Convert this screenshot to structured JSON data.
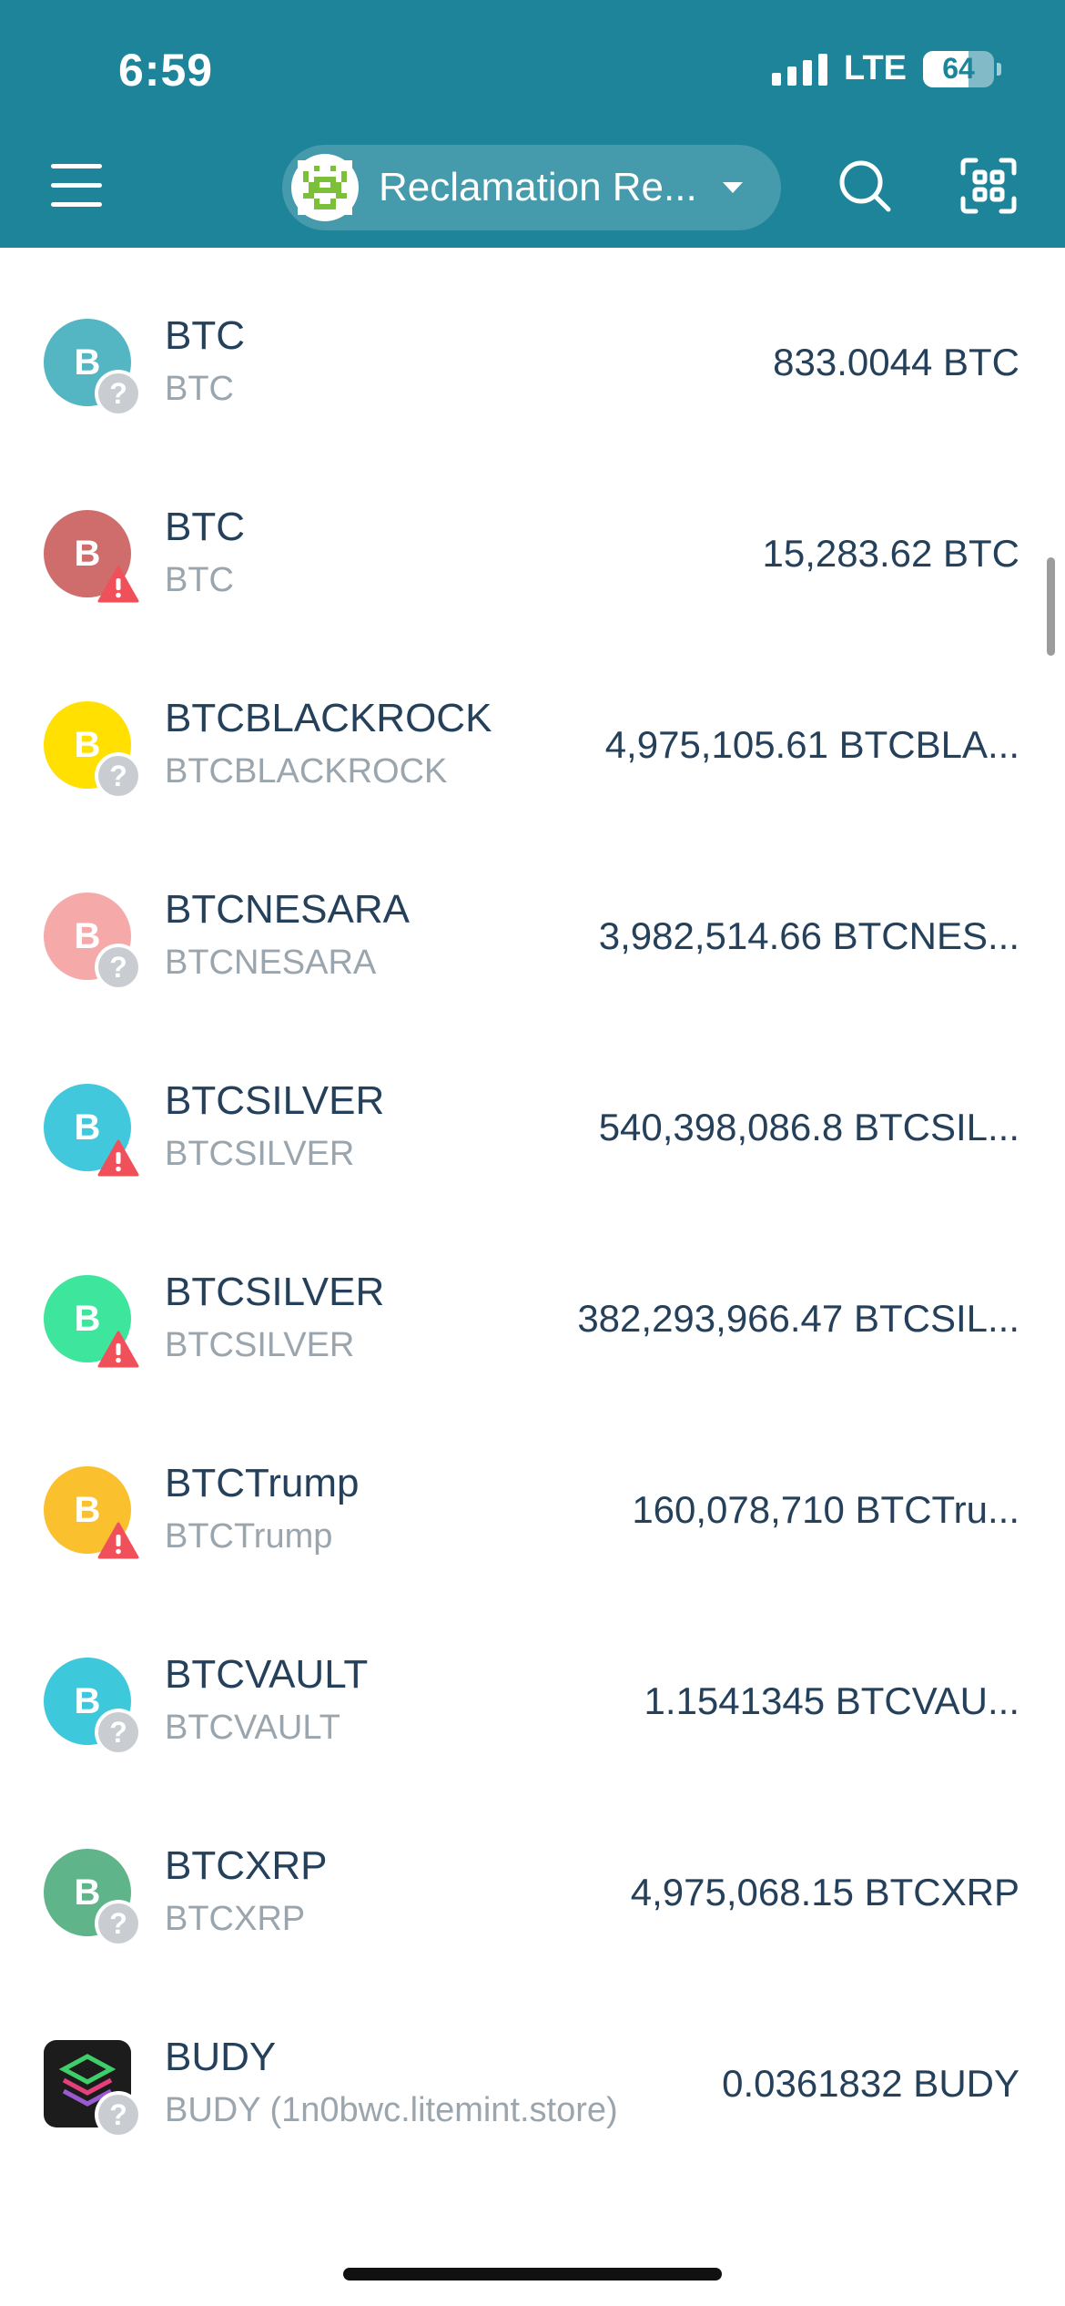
{
  "status_bar": {
    "time": "6:59",
    "network": "LTE",
    "battery_level": "64",
    "battery_fraction": 0.64
  },
  "header": {
    "menu_icon": "hamburger-menu-icon",
    "account_name": "Reclamation Re...",
    "account_avatar": "identicon-avatar",
    "search_icon": "search-icon",
    "scan_icon": "qr-scan-icon",
    "background_color": "#1d8499"
  },
  "tokens": [
    {
      "name": "BTC",
      "symbol": "BTC",
      "balance": "833.0044 BTC",
      "icon_letter": "B",
      "icon_color": "#53b6c2",
      "badge": "question"
    },
    {
      "name": "BTC",
      "symbol": "BTC",
      "balance": "15,283.62 BTC",
      "icon_letter": "B",
      "icon_color": "#cf6c6c",
      "badge": "warning"
    },
    {
      "name": "BTCBLACKROCK",
      "symbol": "BTCBLACKROCK",
      "balance": "4,975,105.61 BTCBLA...",
      "icon_letter": "B",
      "icon_color": "#ffe000",
      "badge": "question"
    },
    {
      "name": "BTCNESARA",
      "symbol": "BTCNESARA",
      "balance": "3,982,514.66 BTCNES...",
      "icon_letter": "B",
      "icon_color": "#f5a9a9",
      "badge": "question"
    },
    {
      "name": "BTCSILVER",
      "symbol": "BTCSILVER",
      "balance": "540,398,086.8 BTCSIL...",
      "icon_letter": "B",
      "icon_color": "#41c8dc",
      "badge": "warning"
    },
    {
      "name": "BTCSILVER",
      "symbol": "BTCSILVER",
      "balance": "382,293,966.47 BTCSIL...",
      "icon_letter": "B",
      "icon_color": "#3ee59c",
      "badge": "warning"
    },
    {
      "name": "BTCTrump",
      "symbol": "BTCTrump",
      "balance": "160,078,710 BTCTru...",
      "icon_letter": "B",
      "icon_color": "#fbc02d",
      "badge": "warning"
    },
    {
      "name": "BTCVAULT",
      "symbol": "BTCVAULT",
      "balance": "1.1541345 BTCVAU...",
      "icon_letter": "B",
      "icon_color": "#3ec8dc",
      "badge": "question"
    },
    {
      "name": "BTCXRP",
      "symbol": "BTCXRP",
      "balance": "4,975,068.15 BTCXRP",
      "icon_letter": "B",
      "icon_color": "#5fb48a",
      "badge": "question"
    },
    {
      "name": "BUDY",
      "symbol": "BUDY (1n0bwc.litemint.store)",
      "balance": "0.0361832 BUDY",
      "icon_letter": "",
      "icon_color": "#1c1c1c",
      "icon_image": "budy-logo",
      "badge": "question"
    }
  ]
}
